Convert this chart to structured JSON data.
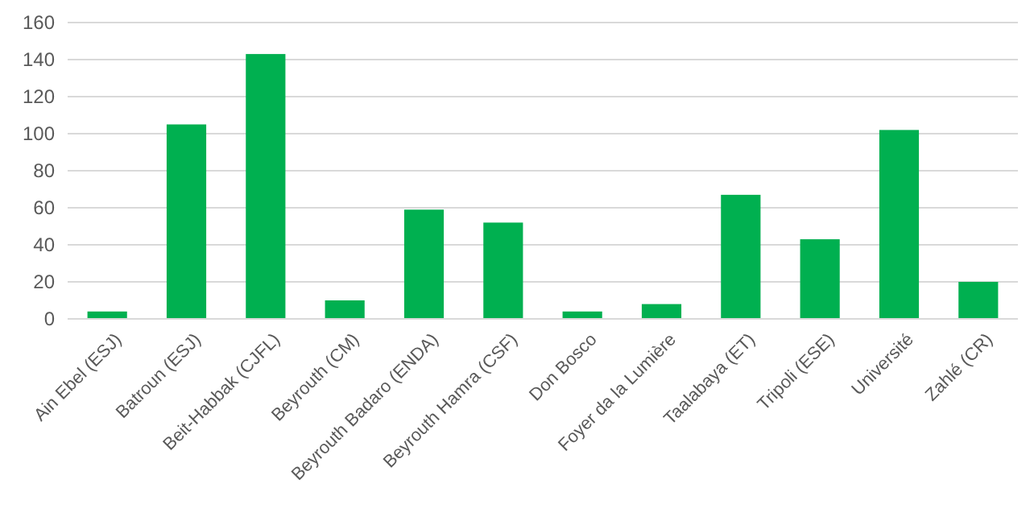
{
  "chart_data": {
    "type": "bar",
    "categories": [
      "Ain Ebel (ESJ)",
      "Batroun (ESJ)",
      "Beit-Habbak (CJFL)",
      "Beyrouth (CM)",
      "Beyrouth Badaro (ENDA)",
      "Beyrouth Hamra (CSF)",
      "Don Bosco",
      "Foyer da la Lumière",
      "Taalabaya (ET)",
      "Tripoli (ESE)",
      "Université",
      "Zahlé (CR)"
    ],
    "values": [
      4,
      105,
      143,
      10,
      59,
      52,
      4,
      8,
      67,
      43,
      102,
      20
    ],
    "color": "#00b050",
    "ylim": [
      0,
      160
    ],
    "yticks": [
      0,
      20,
      40,
      60,
      80,
      100,
      120,
      140,
      160
    ],
    "grid": "y"
  }
}
